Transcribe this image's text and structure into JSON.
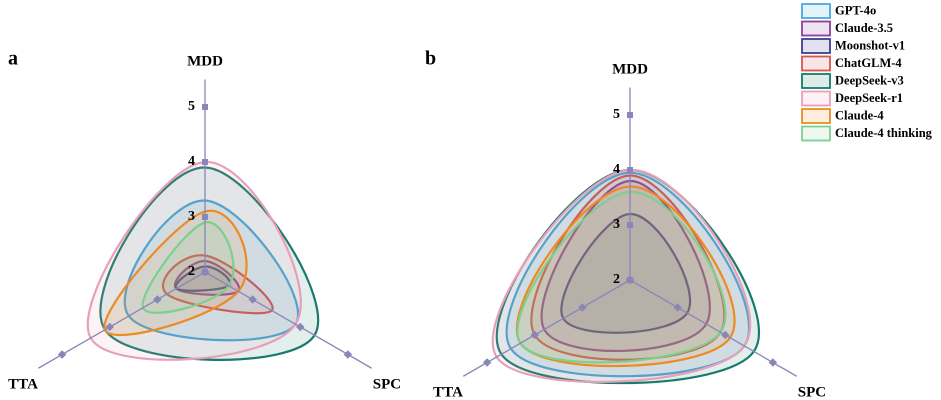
{
  "chart_data": [
    {
      "type": "radar",
      "title": "a",
      "axes": [
        "MDD",
        "SPC",
        "TTA"
      ],
      "rlim": [
        2,
        5.5
      ],
      "rticks": [
        2,
        3,
        4,
        5
      ],
      "series": [
        {
          "name": "GPT-4o",
          "color": "#4aa8de",
          "values": [
            3.3,
            3.9,
            3.6
          ]
        },
        {
          "name": "Claude-3.5",
          "color": "#8e3f9e",
          "values": [
            2.2,
            2.7,
            2.6
          ]
        },
        {
          "name": "Moonshot-v1",
          "color": "#3b3f8f",
          "values": [
            2.1,
            2.5,
            2.6
          ]
        },
        {
          "name": "ChatGLM-4",
          "color": "#d9534f",
          "values": [
            2.3,
            3.4,
            2.8
          ]
        },
        {
          "name": "DeepSeek-v3",
          "color": "#1a7a6e",
          "values": [
            3.9,
            4.3,
            4.1
          ]
        },
        {
          "name": "DeepSeek-r1",
          "color": "#e8a0b8",
          "values": [
            4.0,
            3.9,
            4.4
          ]
        },
        {
          "name": "Claude-4",
          "color": "#ee8a22",
          "values": [
            3.1,
            2.7,
            4.1
          ]
        },
        {
          "name": "Claude-4 thinking",
          "color": "#7ccf8e",
          "values": [
            2.9,
            2.5,
            3.3
          ]
        }
      ]
    },
    {
      "type": "radar",
      "title": "b",
      "axes": [
        "MDD",
        "SPC",
        "TTA"
      ],
      "rlim": [
        2,
        5.5
      ],
      "rticks": [
        2,
        3,
        4,
        5
      ],
      "series": [
        {
          "color": "#4aa8de",
          "values": [
            3.95,
            4.4,
            4.5
          ]
        },
        {
          "color": "#8e3f9e",
          "values": [
            3.8,
            3.6,
            3.8
          ]
        },
        {
          "color": "#3b3f8f",
          "values": [
            3.2,
            3.2,
            3.4
          ]
        },
        {
          "color": "#d9534f",
          "values": [
            3.9,
            3.9,
            4.0
          ]
        },
        {
          "color": "#1a7a6e",
          "values": [
            4.0,
            4.6,
            4.7
          ]
        },
        {
          "color": "#e8a0b8",
          "values": [
            4.0,
            4.4,
            4.8
          ]
        },
        {
          "color": "#ee8a22",
          "values": [
            3.7,
            4.1,
            4.3
          ]
        },
        {
          "color": "#7ccf8e",
          "values": [
            3.6,
            3.9,
            4.3
          ]
        }
      ]
    }
  ]
}
